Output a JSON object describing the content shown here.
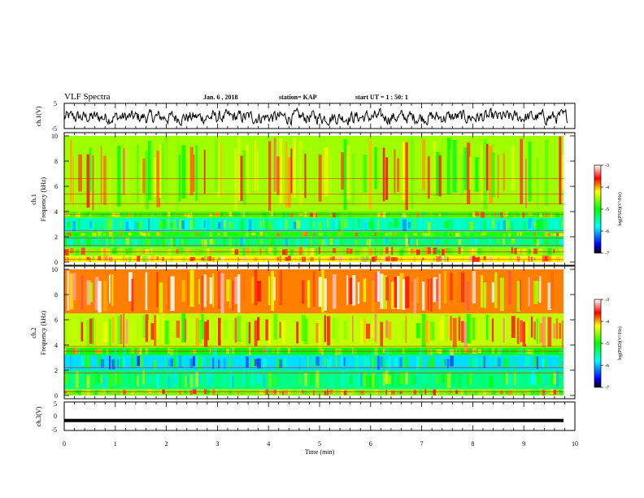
{
  "header": {
    "title": "VLF Spectra",
    "date": "Jan. 6 , 2018",
    "station": "station= KAP",
    "start": "start UT = 1 : 50: 1"
  },
  "chart_data": [
    {
      "type": "line",
      "name": "ch1-waveform",
      "ylabel": "ch.1(V)",
      "ylim": [
        -5,
        5
      ],
      "yticks": [
        "5",
        "-5"
      ],
      "xlim": [
        0,
        10
      ],
      "description_values": "noisy waveform, approx amplitude -4..3 V",
      "amplitude_range": [
        -4,
        3
      ]
    },
    {
      "type": "heatmap",
      "name": "ch1-spectrogram",
      "ylabel_line1": "ch.1",
      "ylabel_line2": "Frequency (kHz)",
      "ylim": [
        0,
        10
      ],
      "yticks": [
        "0",
        "2",
        "4",
        "6",
        "8",
        "10"
      ],
      "xlim": [
        0,
        9.85
      ],
      "colorbar": {
        "label": "log(PSD)(V²/Hz)",
        "range": [
          -7,
          -3
        ],
        "ticks": [
          "-3",
          "-4",
          "-5",
          "-6",
          "-7"
        ]
      },
      "bands": [
        {
          "f": [
            0,
            0.5
          ],
          "level": -4.2
        },
        {
          "f": [
            0.5,
            1.2
          ],
          "level": -4.6
        },
        {
          "f": [
            1.2,
            2.0
          ],
          "level": -5.4
        },
        {
          "f": [
            2.0,
            2.4
          ],
          "level": -4.9
        },
        {
          "f": [
            2.4,
            3.5
          ],
          "level": -5.6
        },
        {
          "f": [
            3.5,
            4.0
          ],
          "level": -4.8
        },
        {
          "f": [
            4.0,
            10.0
          ],
          "level": -4.5
        }
      ]
    },
    {
      "type": "heatmap",
      "name": "ch2-spectrogram",
      "ylabel_line1": "ch.2",
      "ylabel_line2": "Frequency (kHz)",
      "ylim": [
        0,
        10
      ],
      "yticks": [
        "0",
        "2",
        "4",
        "6",
        "8",
        "10"
      ],
      "xlim": [
        0,
        9.85
      ],
      "colorbar": {
        "label": "log(PSD)(V²/Hz)",
        "range": [
          -7,
          -3
        ],
        "ticks": [
          "-3",
          "-4",
          "-5",
          "-6",
          "-7"
        ]
      },
      "bands": [
        {
          "f": [
            0,
            0.5
          ],
          "level": -4.6
        },
        {
          "f": [
            0.5,
            2.0
          ],
          "level": -5.4
        },
        {
          "f": [
            2.0,
            3.2
          ],
          "level": -5.9
        },
        {
          "f": [
            3.2,
            3.8
          ],
          "level": -5.0
        },
        {
          "f": [
            3.8,
            6.5
          ],
          "level": -4.4
        },
        {
          "f": [
            6.5,
            10.0
          ],
          "level": -3.9
        }
      ]
    },
    {
      "type": "line",
      "name": "ch3-waveform",
      "ylabel": "ch.3(V)",
      "ylim": [
        -5,
        5
      ],
      "yticks": [
        "5",
        "0",
        "-5"
      ],
      "xlabel": "Time (min)",
      "xlim": [
        0,
        10
      ],
      "xticks": [
        "0",
        "1",
        "2",
        "3",
        "4",
        "5",
        "6",
        "7",
        "8",
        "9",
        "10"
      ],
      "constant_value": -1.5
    }
  ]
}
